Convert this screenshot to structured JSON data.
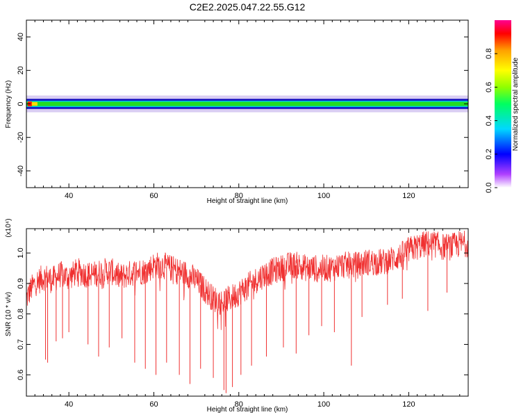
{
  "title": "C2E2.2025.047.22.55.G12",
  "colors": {
    "snr_line": "#f03030",
    "spectrogram_core": "#22dd22",
    "spectrogram_edge": "#1010c0",
    "spectrogram_halo": "#cfc0f0"
  },
  "chart_data": [
    {
      "type": "heatmap",
      "name": "spectrogram",
      "xlabel": "Height of straight line (km)",
      "ylabel": "Frequency (Hz)",
      "xlim": [
        30,
        134
      ],
      "ylim": [
        -50,
        50
      ],
      "xticks": [
        40,
        60,
        80,
        100,
        120
      ],
      "yticks": [
        -40,
        -20,
        0,
        20,
        40
      ],
      "xtick_labels": [
        "40",
        "60",
        "80",
        "100",
        "120"
      ],
      "ytick_labels": [
        "-40",
        "-20",
        "0",
        "20",
        "40"
      ],
      "grid": false,
      "band_center_hz": 0,
      "band_core_halfwidth_hz": 1.5,
      "band_edge_halfwidth_hz": 3,
      "band_halo_halfwidth_hz": 5,
      "peak_x_km": 30.8,
      "colorbar": {
        "label": "Normalized spectral amplitude",
        "range": [
          0,
          1
        ],
        "ticks": [
          0,
          0.2,
          0.4,
          0.6,
          0.8
        ],
        "tick_labels": [
          "0.0",
          "0.2",
          "0.4",
          "0.6",
          "0.8"
        ],
        "colormap": [
          "#ffffff",
          "#b040ff",
          "#0000ff",
          "#00d8ff",
          "#00ff60",
          "#90ff00",
          "#ffff00",
          "#ffa000",
          "#ff0000",
          "#ff0090"
        ]
      }
    },
    {
      "type": "line",
      "name": "snr",
      "xlabel": "Height of straight line (km)",
      "ylabel": "SNR (10 * v/v)",
      "scale_label": "(x10⁴)",
      "xlim": [
        30,
        134
      ],
      "ylim": [
        0.53,
        1.08
      ],
      "xticks": [
        40,
        60,
        80,
        100,
        120
      ],
      "yticks": [
        0.6,
        0.7,
        0.8,
        0.9,
        1.0
      ],
      "xtick_labels": [
        "40",
        "60",
        "80",
        "100",
        "120"
      ],
      "ytick_labels": [
        "0.6",
        "0.7",
        "0.8",
        "0.9",
        "1.0"
      ],
      "grid": false,
      "series": [
        {
          "color": "#f03030",
          "x": [
            30,
            31,
            32,
            33,
            34,
            35,
            36,
            38,
            40,
            42,
            44,
            46,
            48,
            50,
            52,
            54,
            56,
            58,
            60,
            62,
            64,
            66,
            68,
            70,
            72,
            74,
            76,
            78,
            80,
            82,
            84,
            86,
            88,
            90,
            92,
            94,
            96,
            98,
            100,
            102,
            104,
            106,
            108,
            110,
            112,
            114,
            116,
            118,
            120,
            122,
            124,
            126,
            128,
            130,
            132,
            134
          ],
          "y": [
            0.85,
            0.88,
            0.9,
            0.91,
            0.92,
            0.92,
            0.91,
            0.93,
            0.92,
            0.94,
            0.93,
            0.93,
            0.94,
            0.94,
            0.92,
            0.93,
            0.94,
            0.94,
            0.96,
            0.96,
            0.95,
            0.94,
            0.93,
            0.91,
            0.88,
            0.85,
            0.84,
            0.85,
            0.87,
            0.89,
            0.91,
            0.93,
            0.94,
            0.95,
            0.96,
            0.96,
            0.95,
            0.95,
            0.95,
            0.95,
            0.96,
            0.96,
            0.96,
            0.97,
            0.97,
            0.97,
            0.98,
            0.99,
            1.01,
            1.02,
            1.03,
            1.03,
            1.02,
            1.02,
            1.03,
            1.03
          ]
        }
      ],
      "dips": [
        {
          "x": 34.5,
          "y": 0.65
        },
        {
          "x": 35.0,
          "y": 0.64
        },
        {
          "x": 37.0,
          "y": 0.71
        },
        {
          "x": 38.5,
          "y": 0.72
        },
        {
          "x": 40.0,
          "y": 0.74
        },
        {
          "x": 44.5,
          "y": 0.7
        },
        {
          "x": 47.0,
          "y": 0.66
        },
        {
          "x": 49.5,
          "y": 0.69
        },
        {
          "x": 52.5,
          "y": 0.72
        },
        {
          "x": 55.5,
          "y": 0.64
        },
        {
          "x": 58.0,
          "y": 0.62
        },
        {
          "x": 60.5,
          "y": 0.6
        },
        {
          "x": 63.0,
          "y": 0.64
        },
        {
          "x": 66.0,
          "y": 0.6
        },
        {
          "x": 68.5,
          "y": 0.57
        },
        {
          "x": 71.0,
          "y": 0.62
        },
        {
          "x": 74.0,
          "y": 0.59
        },
        {
          "x": 76.5,
          "y": 0.55
        },
        {
          "x": 77.0,
          "y": 0.54
        },
        {
          "x": 78.5,
          "y": 0.56
        },
        {
          "x": 80.5,
          "y": 0.6
        },
        {
          "x": 83.0,
          "y": 0.63
        },
        {
          "x": 86.5,
          "y": 0.66
        },
        {
          "x": 90.5,
          "y": 0.69
        },
        {
          "x": 93.5,
          "y": 0.67
        },
        {
          "x": 96.5,
          "y": 0.73
        },
        {
          "x": 99.5,
          "y": 0.76
        },
        {
          "x": 102.5,
          "y": 0.74
        },
        {
          "x": 106.5,
          "y": 0.63
        },
        {
          "x": 109.0,
          "y": 0.79
        },
        {
          "x": 115.0,
          "y": 0.83
        },
        {
          "x": 118.5,
          "y": 0.85
        },
        {
          "x": 124.5,
          "y": 0.81
        },
        {
          "x": 129.0,
          "y": 0.87
        }
      ]
    }
  ]
}
